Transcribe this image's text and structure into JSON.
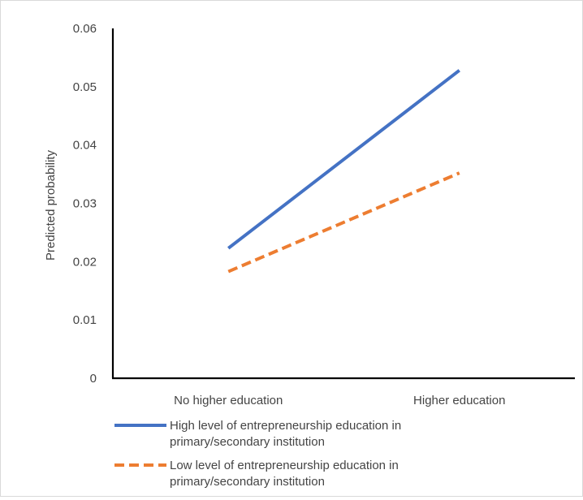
{
  "chart_data": {
    "type": "line",
    "title": "",
    "xlabel": "",
    "ylabel": "Predicted probability",
    "categories": [
      "No higher education",
      "Higher education"
    ],
    "ylim": [
      0,
      0.06
    ],
    "yticks": [
      "0",
      "0.01",
      "0.02",
      "0.03",
      "0.04",
      "0.05",
      "0.06"
    ],
    "grid": false,
    "legend_position": "bottom",
    "series": [
      {
        "name": "High level of entrepreneurship education in primary/secondary institution",
        "name_lines": [
          "High level of entrepreneurship education in",
          "primary/secondary institution"
        ],
        "values": [
          0.0223,
          0.0528
        ],
        "color": "#4472c4",
        "dash": "solid"
      },
      {
        "name": "Low level of entrepreneurship education in primary/secondary institution",
        "name_lines": [
          "Low level of entrepreneurship education in",
          "primary/secondary institution"
        ],
        "values": [
          0.0183,
          0.0352
        ],
        "color": "#ed7d31",
        "dash": "dashed"
      }
    ]
  }
}
